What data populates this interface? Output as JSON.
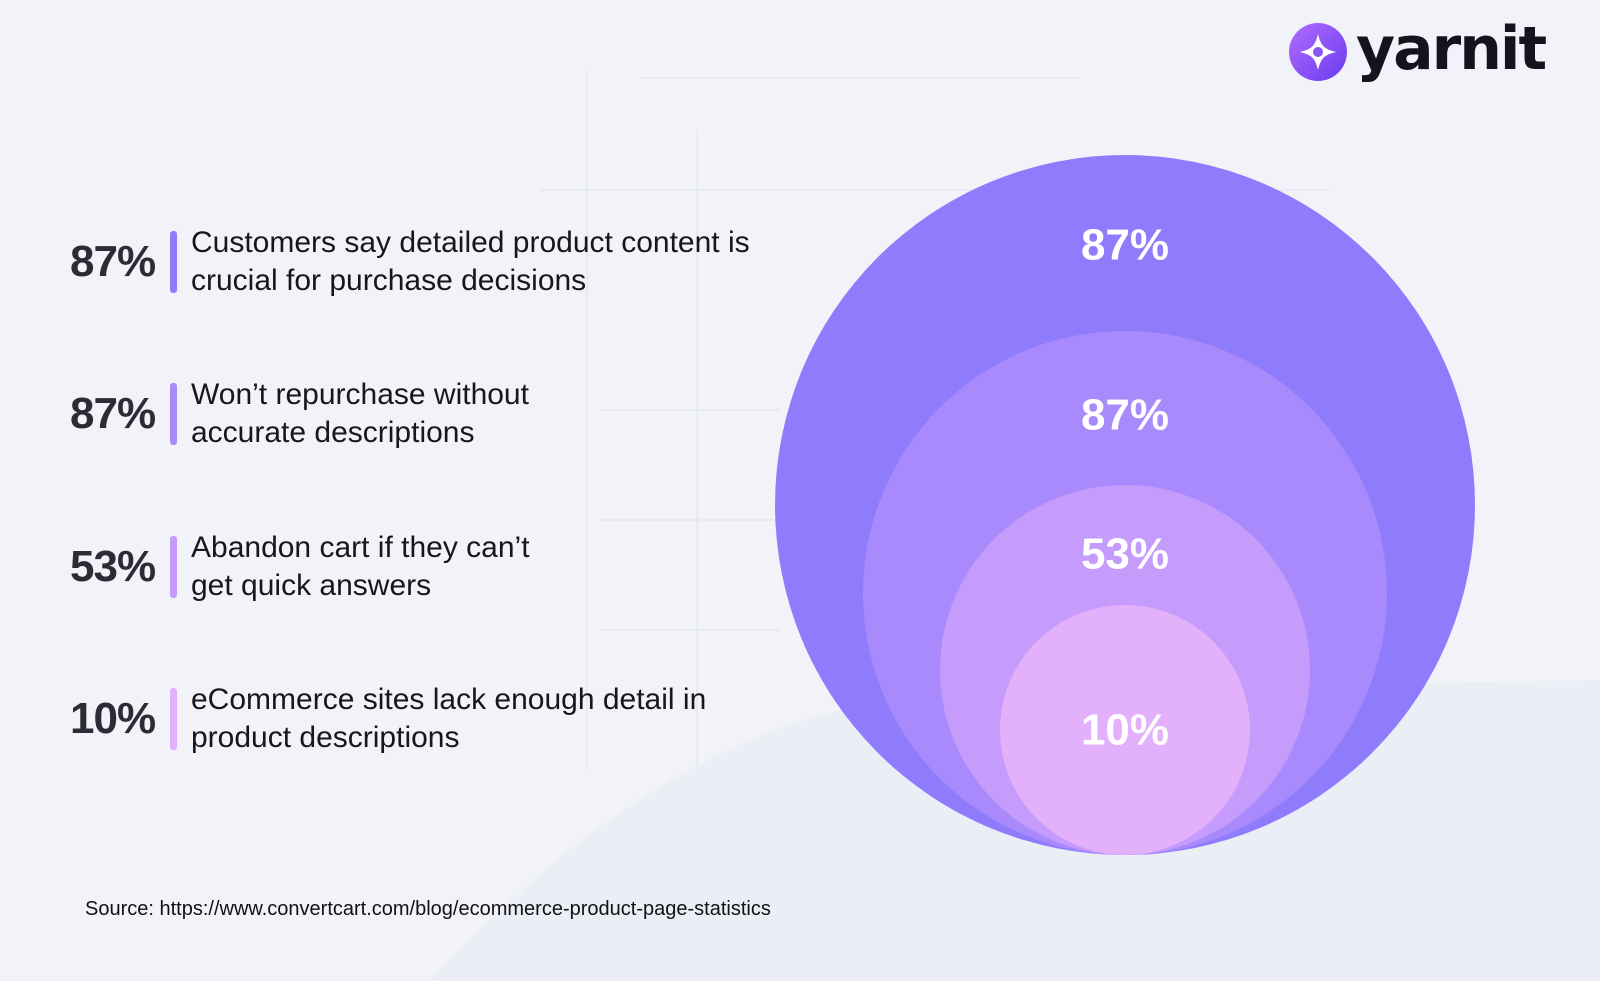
{
  "brand": {
    "name": "yarnit",
    "icon": "yarnit-logo-icon",
    "accent": "#7c4dff"
  },
  "stats": [
    {
      "value": "87%",
      "text": "Customers say detailed product content is crucial for purchase decisions",
      "bar_color": "#8f7cfd"
    },
    {
      "value": "87%",
      "text": "Won’t repurchase without accurate descriptions",
      "bar_color": "#a98afc"
    },
    {
      "value": "53%",
      "text": "Abandon cart if they can’t get quick answers",
      "bar_color": "#c59bfb"
    },
    {
      "value": "10%",
      "text": "eCommerce sites lack enough detail in product descriptions",
      "bar_color": "#e3b0fb"
    }
  ],
  "chart_data": {
    "type": "nested-bubble",
    "categories": [
      "Customers say detailed product content is crucial for purchase decisions",
      "Won’t repurchase without accurate descriptions",
      "Abandon cart if they can’t get quick answers",
      "eCommerce sites lack enough detail in product descriptions"
    ],
    "values": [
      87,
      87,
      53,
      10
    ],
    "labels": [
      "87%",
      "87%",
      "53%",
      "10%"
    ],
    "colors": [
      "#8f7cfd",
      "#a98afc",
      "#c59bfb",
      "#e3b0fb"
    ],
    "unit": "%"
  },
  "source": "Source: https://www.convertcart.com/blog/ecommerce-product-page-statistics"
}
